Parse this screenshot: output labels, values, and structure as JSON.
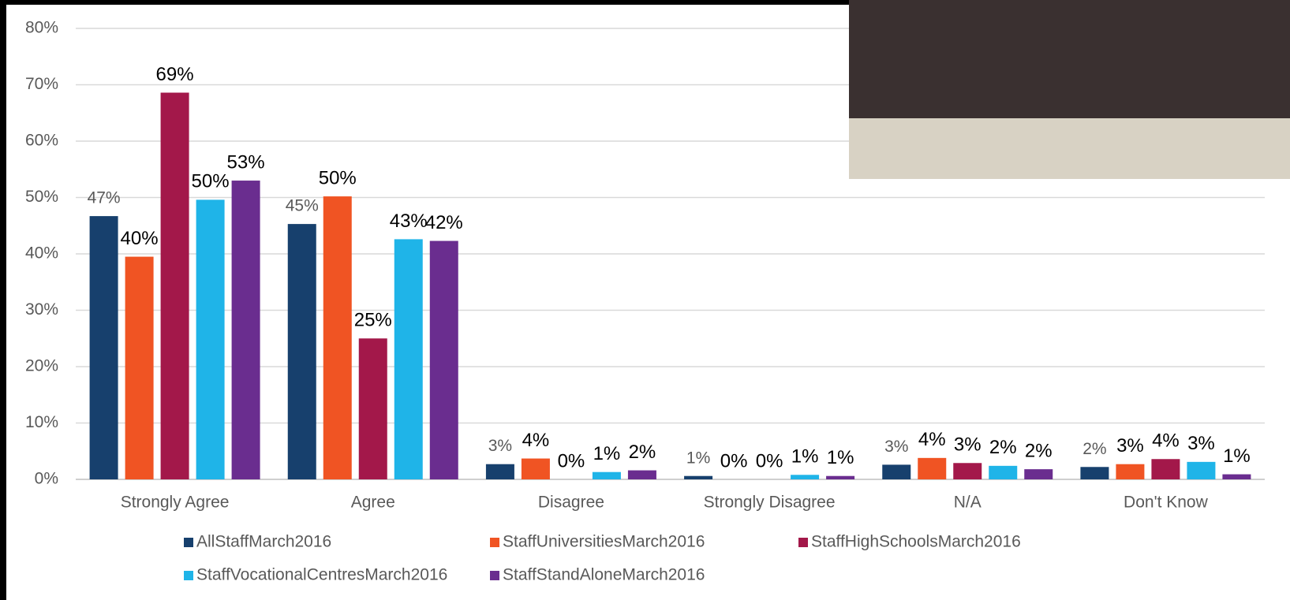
{
  "chart_data": {
    "type": "bar",
    "categories": [
      "Strongly Agree",
      "Agree",
      "Disagree",
      "Strongly Disagree",
      "N/A",
      "Don't Know"
    ],
    "series": [
      {
        "name": "AllStaffMarch2016",
        "color": "#17406d",
        "values": [
          46.7,
          45.3,
          2.7,
          0.6,
          2.6,
          2.2
        ],
        "value_labels": [
          "47%",
          "45%",
          "3%",
          "1%",
          "3%",
          "2%"
        ]
      },
      {
        "name": "StaffUniversitiesMarch2016",
        "color": "#f05423",
        "values": [
          39.5,
          50.2,
          3.7,
          0,
          3.8,
          2.7
        ],
        "value_labels": [
          "40%",
          "50%",
          "4%",
          "0%",
          "4%",
          "3%"
        ]
      },
      {
        "name": "StaffHighSchoolsMarch2016",
        "color": "#a3184a",
        "values": [
          68.6,
          25.0,
          0,
          0,
          2.9,
          3.6
        ],
        "value_labels": [
          "69%",
          "25%",
          "0%",
          "0%",
          "3%",
          "4%"
        ]
      },
      {
        "name": "StaffVocationalCentresMarch2016",
        "color": "#1fb4e8",
        "values": [
          49.6,
          42.6,
          1.3,
          0.8,
          2.4,
          3.1
        ],
        "value_labels": [
          "50%",
          "43%",
          "1%",
          "1%",
          "2%",
          "3%"
        ]
      },
      {
        "name": "StaffStandAloneMarch2016",
        "color": "#6a2d8f",
        "values": [
          53.0,
          42.3,
          1.6,
          0.6,
          1.8,
          0.9
        ],
        "value_labels": [
          "53%",
          "42%",
          "2%",
          "1%",
          "2%",
          "1%"
        ]
      }
    ],
    "ylim": [
      0,
      80
    ],
    "yticks": [
      {
        "value": 0,
        "label": "0%"
      },
      {
        "value": 10,
        "label": "10%"
      },
      {
        "value": 20,
        "label": "20%"
      },
      {
        "value": 30,
        "label": "30%"
      },
      {
        "value": 40,
        "label": "40%"
      },
      {
        "value": 50,
        "label": "50%"
      },
      {
        "value": 60,
        "label": "60%"
      },
      {
        "value": 70,
        "label": "70%"
      },
      {
        "value": 80,
        "label": "80%"
      }
    ],
    "grid": true
  }
}
